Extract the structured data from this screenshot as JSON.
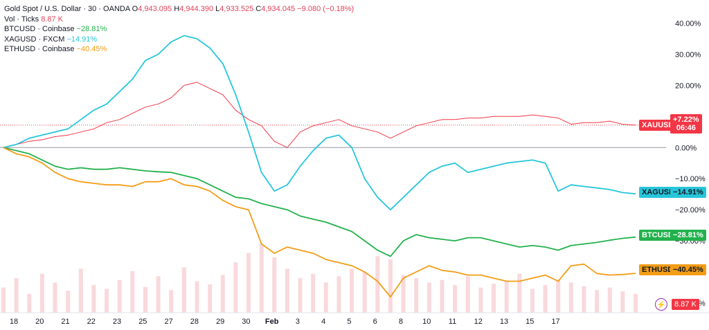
{
  "legend": {
    "main": {
      "symbol": "Gold Spot / U.S. Dollar · 30 · OANDA",
      "o_label": "O",
      "o": "4,943.095",
      "h_label": "H",
      "h": "4,944.390",
      "l_label": "L",
      "l": "4,933.525",
      "c_label": "C",
      "c": "4,934.045",
      "change": "−9.080 (−0.18%)"
    },
    "vol": {
      "label": "Vol · Ticks",
      "value": "8.87 K"
    },
    "series": [
      {
        "label": "BTCUSD · Coinbase",
        "value": "−28.81%",
        "color": "#22b14c"
      },
      {
        "label": "XAGUSD · FXCM",
        "value": "−14.91%",
        "color": "#26c6da"
      },
      {
        "label": "ETHUSD · Coinbase",
        "value": "−40.45%",
        "color": "#f29d16"
      }
    ]
  },
  "price_labels": {
    "xau": {
      "name": "XAUUSD",
      "value": "+7.22%",
      "countdown": "06:46",
      "color": "#f23645"
    },
    "xag": {
      "name": "XAGUSD",
      "value": "−14.91%",
      "color": "#26c6da"
    },
    "btc": {
      "name": "BTCUSD",
      "value": "−28.81%",
      "color": "#22b14c"
    },
    "eth": {
      "name": "ETHUSD",
      "value": "−40.45%",
      "color": "#f29d16"
    },
    "vol": {
      "value": "8.87 K",
      "color": "#f23645"
    }
  },
  "icons": {
    "flash": "⚡"
  },
  "chart_data": {
    "type": "line",
    "x_ticks": [
      "18",
      "20",
      "21",
      "22",
      "23",
      "25",
      "27",
      "28",
      "29",
      "30",
      "Feb",
      "3",
      "4",
      "5",
      "6",
      "8",
      "10",
      "11",
      "12",
      "13",
      "15",
      "17"
    ],
    "y_ticks": [
      "40.00%",
      "30.00%",
      "20.00%",
      "10.00%",
      "0.00%",
      "−10.00%",
      "−20.00%",
      "−30.00%",
      "−50.00%"
    ],
    "ylim": [
      -52,
      43
    ],
    "x": [
      0,
      1,
      2,
      3,
      4,
      5,
      6,
      7,
      8,
      9,
      10,
      11,
      12,
      13,
      14,
      15,
      16,
      17,
      18,
      19,
      20,
      21,
      22,
      23,
      24,
      25,
      26,
      27,
      28,
      29,
      30,
      31,
      32,
      33,
      34,
      35,
      36,
      37,
      38,
      39,
      40,
      41,
      42,
      43,
      44,
      45,
      46,
      47,
      48,
      49
    ],
    "x_tick_positions": [
      0,
      2,
      4,
      6,
      8,
      10,
      12,
      14,
      16,
      18,
      20,
      22,
      24,
      26,
      28,
      30,
      32,
      34,
      36,
      38,
      40,
      42
    ],
    "series": [
      {
        "name": "XAUUSD",
        "color": "#f23645",
        "values": [
          0,
          1,
          2,
          2.5,
          3.5,
          4,
          5,
          6,
          8,
          9,
          11,
          13,
          14,
          16,
          20,
          21,
          19,
          17,
          12,
          9,
          7,
          2,
          0,
          5,
          7,
          8,
          9,
          7,
          6,
          5,
          3,
          5,
          7,
          8,
          9,
          9,
          9.5,
          9.5,
          10,
          10,
          10,
          10.5,
          10,
          9.5,
          7.5,
          8,
          8,
          8.5,
          7.5,
          7.2
        ]
      },
      {
        "name": "XAGUSD",
        "color": "#26c6da",
        "values": [
          0,
          1,
          3,
          4,
          5,
          6,
          9,
          12,
          14,
          18,
          22,
          28,
          30,
          34,
          36,
          35,
          32,
          27,
          17,
          5,
          -8,
          -14,
          -12,
          -6,
          -1,
          3,
          4,
          0,
          -10,
          -16,
          -20,
          -16,
          -12,
          -8,
          -6,
          -5,
          -8,
          -7,
          -6,
          -5,
          -4.5,
          -4,
          -5,
          -14,
          -12,
          -12.5,
          -13,
          -13.5,
          -14.5,
          -14.9
        ]
      },
      {
        "name": "BTCUSD",
        "color": "#22b14c",
        "values": [
          0,
          -1,
          -2,
          -4,
          -6,
          -7,
          -6.5,
          -7,
          -7,
          -6.5,
          -7,
          -7.5,
          -7.8,
          -8,
          -9,
          -10,
          -12,
          -14,
          -16,
          -16.5,
          -18,
          -19,
          -20,
          -22,
          -23,
          -24,
          -25.5,
          -27,
          -30,
          -33,
          -35,
          -30,
          -28,
          -29,
          -29.5,
          -30,
          -29,
          -29,
          -30,
          -31,
          -32,
          -31.5,
          -32,
          -33,
          -31.5,
          -31,
          -30.5,
          -29.8,
          -29.2,
          -28.8
        ]
      },
      {
        "name": "ETHUSD",
        "color": "#f29d16",
        "values": [
          0,
          -2,
          -3,
          -5,
          -8,
          -10,
          -11,
          -11.5,
          -12,
          -12,
          -12.5,
          -11,
          -11,
          -10,
          -12,
          -12.5,
          -14,
          -17,
          -19,
          -20,
          -31,
          -34,
          -32,
          -33,
          -34,
          -36,
          -37,
          -38,
          -40,
          -43,
          -48,
          -42,
          -40,
          -38,
          -39.5,
          -40,
          -41,
          -41,
          -42,
          -43,
          -43,
          -42,
          -41,
          -43,
          -38,
          -37.5,
          -40.5,
          -41,
          -40.8,
          -40.45
        ]
      }
    ],
    "volume": [
      40,
      55,
      30,
      62,
      48,
      35,
      70,
      44,
      38,
      52,
      66,
      41,
      58,
      36,
      72,
      50,
      45,
      60,
      80,
      95,
      110,
      88,
      70,
      55,
      62,
      48,
      58,
      70,
      65,
      90,
      85,
      60,
      55,
      48,
      52,
      44,
      58,
      40,
      46,
      50,
      62,
      38,
      44,
      52,
      48,
      42,
      36,
      40,
      34,
      30
    ],
    "baseline": 0,
    "grid": false,
    "legend_position": "top-left"
  }
}
